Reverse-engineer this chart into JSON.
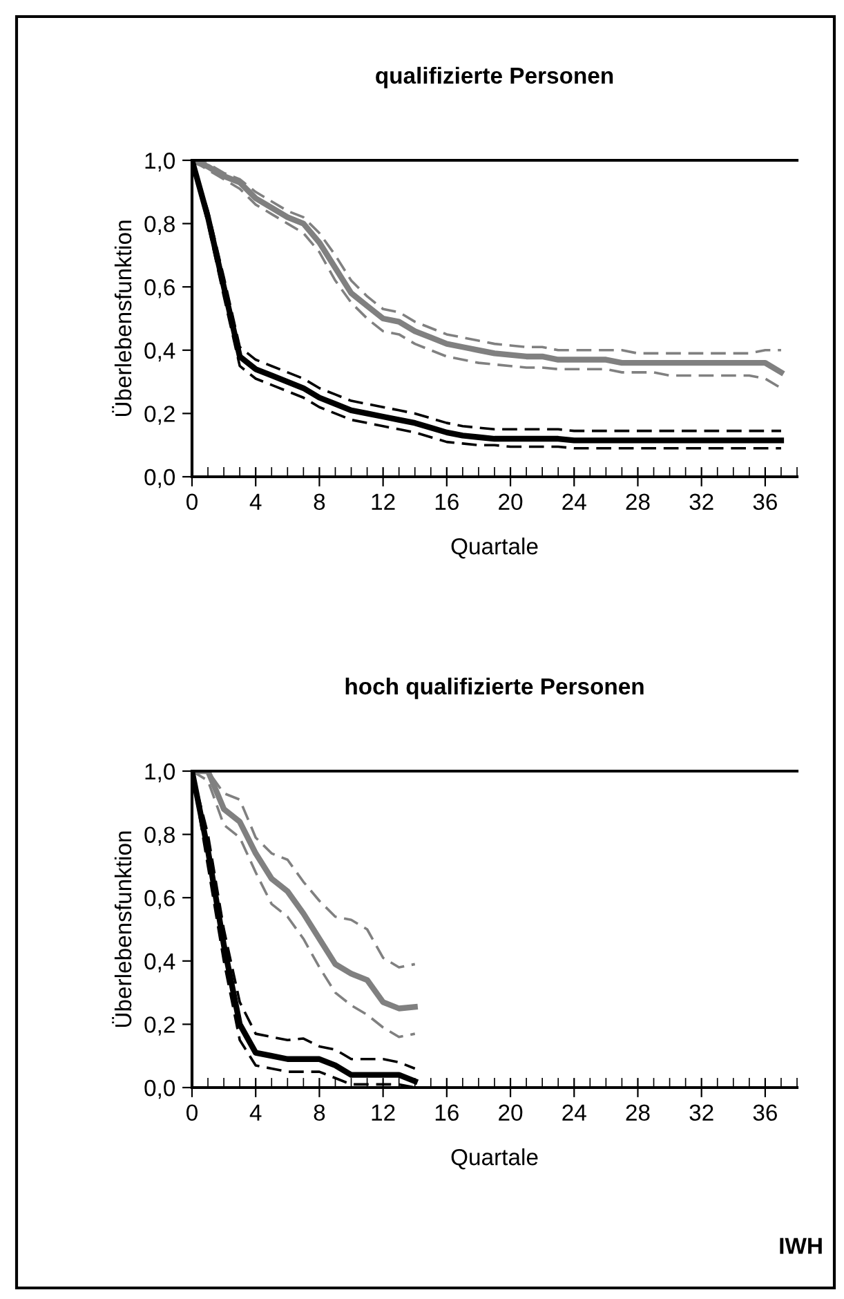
{
  "chart_data": [
    {
      "type": "line",
      "title": "qualifizierte Personen",
      "xlabel": "Quartale",
      "ylabel": "Überlebensfunktion",
      "x": [
        0,
        1,
        2,
        3,
        4,
        5,
        6,
        7,
        8,
        9,
        10,
        11,
        12,
        13,
        14,
        15,
        16,
        17,
        18,
        19,
        20,
        21,
        22,
        23,
        24,
        25,
        26,
        27,
        28,
        29,
        30,
        31,
        32,
        33,
        34,
        35,
        36,
        37
      ],
      "xlim": [
        0,
        38
      ],
      "xticks": [
        0,
        4,
        8,
        12,
        16,
        20,
        24,
        28,
        32,
        36
      ],
      "ylim": [
        0,
        1
      ],
      "yticks": [
        {
          "value": 0,
          "label": "0,0"
        },
        {
          "value": 0.2,
          "label": "0,2"
        },
        {
          "value": 0.4,
          "label": "0,4"
        },
        {
          "value": 0.6,
          "label": "0,6"
        },
        {
          "value": 0.8,
          "label": "0,8"
        },
        {
          "value": 1,
          "label": "1,0"
        }
      ],
      "grid": false,
      "legend": false,
      "marker": "none",
      "series": [
        {
          "color": "#808080",
          "line_style": "dashed",
          "values": [
            1.0,
            0.99,
            0.96,
            0.94,
            0.9,
            0.87,
            0.84,
            0.82,
            0.77,
            0.7,
            0.62,
            0.57,
            0.53,
            0.52,
            0.49,
            0.47,
            0.45,
            0.44,
            0.43,
            0.42,
            0.415,
            0.41,
            0.41,
            0.4,
            0.4,
            0.4,
            0.4,
            0.4,
            0.39,
            0.39,
            0.39,
            0.39,
            0.39,
            0.39,
            0.39,
            0.39,
            0.4,
            0.4
          ]
        },
        {
          "color": "#808080",
          "line_style": "solid",
          "values": [
            1.0,
            0.98,
            0.95,
            0.93,
            0.88,
            0.85,
            0.82,
            0.8,
            0.74,
            0.66,
            0.58,
            0.54,
            0.5,
            0.49,
            0.46,
            0.44,
            0.42,
            0.41,
            0.4,
            0.39,
            0.385,
            0.38,
            0.38,
            0.37,
            0.37,
            0.37,
            0.37,
            0.36,
            0.36,
            0.36,
            0.36,
            0.36,
            0.36,
            0.36,
            0.36,
            0.36,
            0.36,
            0.33
          ]
        },
        {
          "color": "#808080",
          "line_style": "dashed",
          "values": [
            1.0,
            0.97,
            0.94,
            0.91,
            0.86,
            0.83,
            0.8,
            0.77,
            0.71,
            0.62,
            0.55,
            0.5,
            0.46,
            0.45,
            0.42,
            0.4,
            0.38,
            0.37,
            0.36,
            0.355,
            0.35,
            0.345,
            0.345,
            0.34,
            0.34,
            0.34,
            0.34,
            0.33,
            0.33,
            0.33,
            0.32,
            0.32,
            0.32,
            0.32,
            0.32,
            0.32,
            0.31,
            0.28
          ]
        },
        {
          "color": "#000000",
          "line_style": "dashed",
          "values": [
            1.0,
            0.84,
            0.63,
            0.41,
            0.37,
            0.35,
            0.33,
            0.31,
            0.28,
            0.26,
            0.24,
            0.23,
            0.22,
            0.21,
            0.2,
            0.185,
            0.17,
            0.16,
            0.155,
            0.15,
            0.15,
            0.15,
            0.15,
            0.15,
            0.145,
            0.145,
            0.145,
            0.145,
            0.145,
            0.145,
            0.145,
            0.145,
            0.145,
            0.145,
            0.145,
            0.145,
            0.145,
            0.145
          ]
        },
        {
          "color": "#000000",
          "line_style": "solid",
          "values": [
            1.0,
            0.82,
            0.6,
            0.38,
            0.34,
            0.32,
            0.3,
            0.28,
            0.25,
            0.23,
            0.21,
            0.2,
            0.19,
            0.18,
            0.17,
            0.155,
            0.14,
            0.13,
            0.125,
            0.12,
            0.12,
            0.12,
            0.12,
            0.12,
            0.115,
            0.115,
            0.115,
            0.115,
            0.115,
            0.115,
            0.115,
            0.115,
            0.115,
            0.115,
            0.115,
            0.115,
            0.115,
            0.115
          ]
        },
        {
          "color": "#000000",
          "line_style": "dashed",
          "values": [
            1.0,
            0.8,
            0.57,
            0.35,
            0.31,
            0.29,
            0.27,
            0.25,
            0.22,
            0.2,
            0.18,
            0.17,
            0.16,
            0.15,
            0.14,
            0.125,
            0.11,
            0.105,
            0.1,
            0.1,
            0.095,
            0.095,
            0.095,
            0.095,
            0.09,
            0.09,
            0.09,
            0.09,
            0.09,
            0.09,
            0.09,
            0.09,
            0.09,
            0.09,
            0.09,
            0.09,
            0.09,
            0.09
          ]
        }
      ]
    },
    {
      "type": "line",
      "title": "hoch qualifizierte Personen",
      "xlabel": "Quartale",
      "ylabel": "Überlebensfunktion",
      "x": [
        0,
        1,
        2,
        3,
        4,
        5,
        6,
        7,
        8,
        9,
        10,
        11,
        12,
        13,
        14
      ],
      "xlim": [
        0,
        38
      ],
      "xticks": [
        0,
        4,
        8,
        12,
        16,
        20,
        24,
        28,
        32,
        36
      ],
      "ylim": [
        0,
        1
      ],
      "yticks": [
        {
          "value": 0,
          "label": "0,0"
        },
        {
          "value": 0.2,
          "label": "0,2"
        },
        {
          "value": 0.4,
          "label": "0,4"
        },
        {
          "value": 0.6,
          "label": "0,6"
        },
        {
          "value": 0.8,
          "label": "0,8"
        },
        {
          "value": 1,
          "label": "1,0"
        }
      ],
      "grid": false,
      "legend": false,
      "marker": "none",
      "annotations": [
        "IWH"
      ],
      "series": [
        {
          "color": "#808080",
          "line_style": "dashed",
          "values": [
            1.0,
            1.0,
            0.93,
            0.91,
            0.79,
            0.74,
            0.72,
            0.65,
            0.59,
            0.54,
            0.53,
            0.5,
            0.41,
            0.38,
            0.39
          ]
        },
        {
          "color": "#808080",
          "line_style": "solid",
          "values": [
            1.0,
            1.0,
            0.88,
            0.84,
            0.74,
            0.66,
            0.62,
            0.55,
            0.47,
            0.39,
            0.36,
            0.34,
            0.27,
            0.25,
            0.255
          ]
        },
        {
          "color": "#808080",
          "line_style": "dashed",
          "values": [
            1.0,
            0.97,
            0.83,
            0.79,
            0.68,
            0.58,
            0.54,
            0.47,
            0.38,
            0.3,
            0.26,
            0.23,
            0.19,
            0.16,
            0.17
          ]
        },
        {
          "color": "#000000",
          "line_style": "dashed",
          "values": [
            1.0,
            0.8,
            0.5,
            0.27,
            0.17,
            0.16,
            0.15,
            0.155,
            0.13,
            0.12,
            0.09,
            0.09,
            0.09,
            0.08,
            0.06
          ]
        },
        {
          "color": "#000000",
          "line_style": "solid",
          "values": [
            1.0,
            0.75,
            0.45,
            0.2,
            0.11,
            0.1,
            0.09,
            0.09,
            0.09,
            0.07,
            0.04,
            0.04,
            0.04,
            0.04,
            0.02
          ]
        },
        {
          "color": "#000000",
          "line_style": "dashed",
          "values": [
            1.0,
            0.7,
            0.4,
            0.15,
            0.07,
            0.06,
            0.05,
            0.05,
            0.05,
            0.03,
            0.01,
            0.01,
            0.01,
            0.01,
            0.0
          ]
        }
      ]
    }
  ]
}
